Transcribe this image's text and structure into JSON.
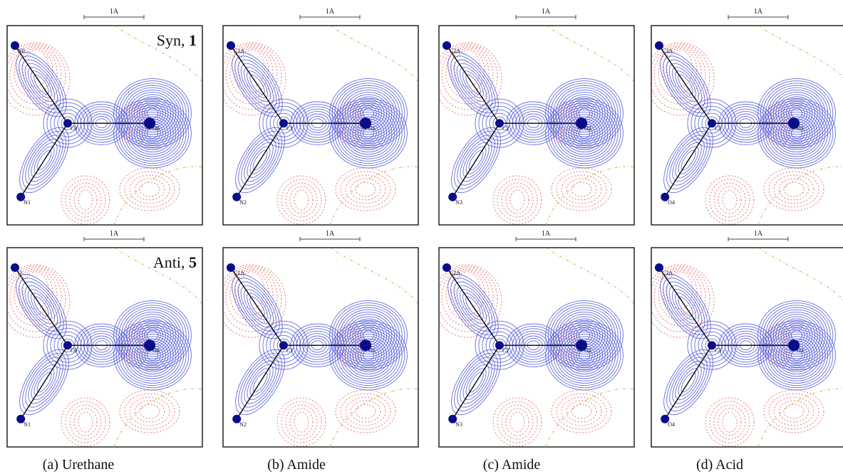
{
  "scale_label": "1A",
  "row_labels": [
    {
      "text": "Syn, ",
      "bold": "1"
    },
    {
      "text": "Anti, ",
      "bold": "5"
    }
  ],
  "captions": [
    "(a) Urethane",
    "(b) Amide",
    "(c) Amide",
    "(d) Acid"
  ],
  "panels": [
    {
      "row": 0,
      "col": 0,
      "atoms": [
        {
          "id": "N0",
          "label": "N0",
          "role": "top-left"
        },
        {
          "id": "C0",
          "label": "C0",
          "role": "center"
        },
        {
          "id": "O0",
          "label": "O0",
          "role": "right"
        },
        {
          "id": "N1",
          "label": "N1",
          "role": "bottom-left"
        }
      ]
    },
    {
      "row": 0,
      "col": 1,
      "atoms": [
        {
          "id": "C1A",
          "label": "C1A",
          "role": "top-left"
        },
        {
          "id": "C1",
          "label": "C1",
          "role": "center"
        },
        {
          "id": "O1",
          "label": "O1",
          "role": "right"
        },
        {
          "id": "N2",
          "label": "N2",
          "role": "bottom-left"
        }
      ]
    },
    {
      "row": 0,
      "col": 2,
      "atoms": [
        {
          "id": "C2A",
          "label": "C2A",
          "role": "top-left"
        },
        {
          "id": "C2",
          "label": "C2",
          "role": "center"
        },
        {
          "id": "O2",
          "label": "O2",
          "role": "right"
        },
        {
          "id": "N3",
          "label": "N3",
          "role": "bottom-left"
        }
      ]
    },
    {
      "row": 0,
      "col": 3,
      "atoms": [
        {
          "id": "C3A",
          "label": "C3A",
          "role": "top-left"
        },
        {
          "id": "C3",
          "label": "C3",
          "role": "center"
        },
        {
          "id": "O3",
          "label": "O3",
          "role": "right"
        },
        {
          "id": "O4",
          "label": "O4",
          "role": "bottom-left"
        }
      ]
    },
    {
      "row": 1,
      "col": 0,
      "atoms": [
        {
          "id": "O",
          "label": "O",
          "role": "top-left"
        },
        {
          "id": "C0",
          "label": "C0",
          "role": "center"
        },
        {
          "id": "O0",
          "label": "O0",
          "role": "right"
        },
        {
          "id": "N1",
          "label": "N1",
          "role": "bottom-left"
        }
      ]
    },
    {
      "row": 1,
      "col": 1,
      "atoms": [
        {
          "id": "C1A",
          "label": "C1A",
          "role": "top-left"
        },
        {
          "id": "C1",
          "label": "C1",
          "role": "center"
        },
        {
          "id": "O1",
          "label": "O1",
          "role": "right"
        },
        {
          "id": "N2",
          "label": "N2",
          "role": "bottom-left"
        }
      ]
    },
    {
      "row": 1,
      "col": 2,
      "atoms": [
        {
          "id": "C2A",
          "label": "C2A",
          "role": "top-left"
        },
        {
          "id": "C2",
          "label": "C2",
          "role": "center"
        },
        {
          "id": "O2",
          "label": "O2",
          "role": "right"
        },
        {
          "id": "N3",
          "label": "N3",
          "role": "bottom-left"
        }
      ]
    },
    {
      "row": 1,
      "col": 3,
      "atoms": [
        {
          "id": "C3A",
          "label": "C3A",
          "role": "top-left"
        },
        {
          "id": "C3",
          "label": "C3",
          "role": "center"
        },
        {
          "id": "O3",
          "label": "O3",
          "role": "right"
        },
        {
          "id": "O4",
          "label": "O4",
          "role": "bottom-left"
        }
      ]
    }
  ],
  "colors": {
    "positive_contour": "#4a55d8",
    "negative_contour": "#e0453f",
    "zero_contour": "#a3b23a",
    "atom_core": "#0a0d8a"
  }
}
